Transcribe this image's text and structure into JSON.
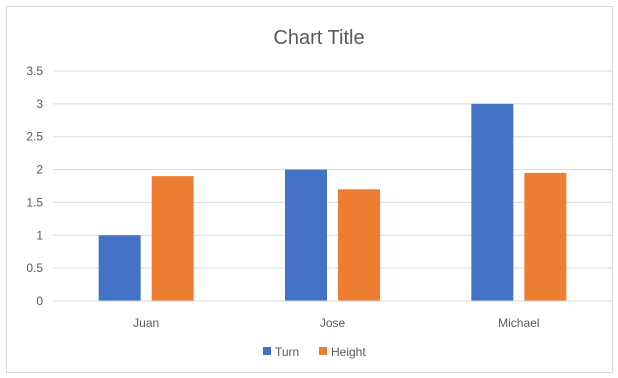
{
  "chart_data": {
    "type": "bar",
    "title": "Chart Title",
    "categories": [
      "Juan",
      "Jose",
      "Michael"
    ],
    "series": [
      {
        "name": "Turn",
        "values": [
          1,
          2,
          3
        ],
        "color": "#4472C4"
      },
      {
        "name": "Height",
        "values": [
          1.9,
          1.7,
          1.95
        ],
        "color": "#ED7D31"
      }
    ],
    "yticks": [
      "0",
      "0.5",
      "1",
      "1.5",
      "2",
      "2.5",
      "3",
      "3.5"
    ],
    "ylim": [
      0,
      3.5
    ],
    "grid": true,
    "legend_position": "bottom"
  }
}
